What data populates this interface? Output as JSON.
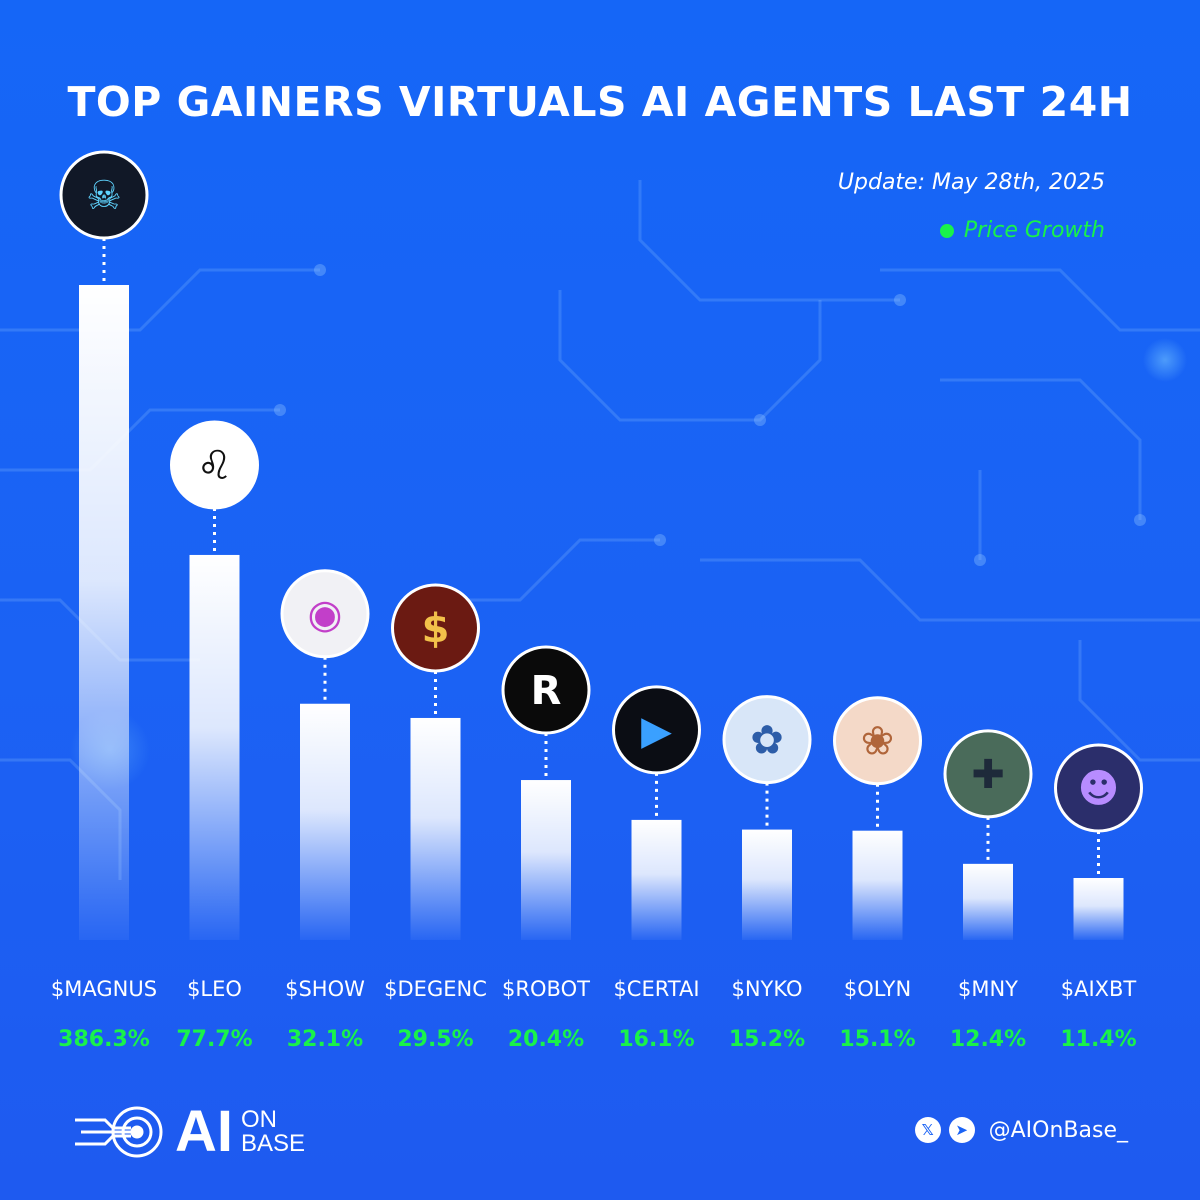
{
  "header": {
    "title": "TOP GAINERS VIRTUALS AI AGENTS LAST 24H",
    "update": "Update: May 28th, 2025"
  },
  "colors": {
    "background": "#1a63f5",
    "accent_green": "#19f24a",
    "bar_top": "#ffffff"
  },
  "chart_data": {
    "type": "bar",
    "title": "TOP GAINERS VIRTUALS AI AGENTS LAST 24H",
    "categories": [
      "$MAGNUS",
      "$LEO",
      "$SHOW",
      "$DEGENC",
      "$ROBOT",
      "$CERTAI",
      "$NYKO",
      "$OLYN",
      "$MNY",
      "$AIXBT"
    ],
    "series": [
      {
        "name": "Price Growth",
        "values": [
          386.3,
          77.7,
          32.1,
          29.5,
          20.4,
          16.1,
          15.2,
          15.1,
          12.4,
          11.4
        ],
        "labels": [
          "386.3%",
          "77.7%",
          "32.1%",
          "29.5%",
          "20.4%",
          "16.1%",
          "15.2%",
          "15.1%",
          "12.4%",
          "11.4%"
        ]
      }
    ],
    "avatars": [
      "hooded-robot-icon",
      "lion-icon",
      "eye-icon",
      "trader-icon",
      "robot-logo-icon",
      "certai-logo-icon",
      "anime-girl-icon",
      "anime-girl-icon",
      "duck-icon",
      "frog-icon"
    ],
    "legend": "top-right",
    "grid": false
  },
  "footer": {
    "logo_main": "AI",
    "logo_sub_1": "ON",
    "logo_sub_2": "BASE",
    "handle": "@AIOnBase_",
    "x_icon": "𝕏",
    "telegram_icon": "➤"
  }
}
